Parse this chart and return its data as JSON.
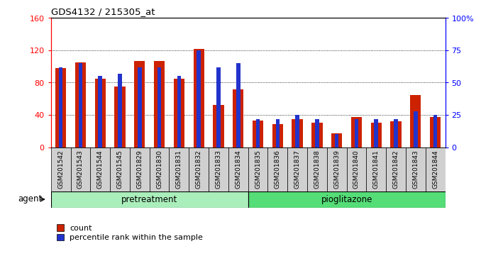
{
  "title": "GDS4132 / 215305_at",
  "samples": [
    "GSM201542",
    "GSM201543",
    "GSM201544",
    "GSM201545",
    "GSM201829",
    "GSM201830",
    "GSM201831",
    "GSM201832",
    "GSM201833",
    "GSM201834",
    "GSM201835",
    "GSM201836",
    "GSM201837",
    "GSM201838",
    "GSM201839",
    "GSM201840",
    "GSM201841",
    "GSM201842",
    "GSM201843",
    "GSM201844"
  ],
  "count": [
    98,
    105,
    85,
    75,
    107,
    107,
    85,
    122,
    52,
    72,
    33,
    29,
    35,
    30,
    17,
    37,
    30,
    32,
    65,
    37
  ],
  "percentile": [
    62,
    65,
    55,
    57,
    62,
    62,
    55,
    75,
    62,
    65,
    22,
    22,
    25,
    22,
    10,
    22,
    22,
    22,
    28,
    25
  ],
  "ylim_left": [
    0,
    160
  ],
  "ylim_right": [
    0,
    100
  ],
  "yticks_left": [
    0,
    40,
    80,
    120,
    160
  ],
  "yticks_right": [
    0,
    25,
    50,
    75,
    100
  ],
  "ytick_right_labels": [
    "0",
    "25",
    "50",
    "75",
    "100%"
  ],
  "bar_color_count": "#cc2200",
  "bar_color_percentile": "#2233cc",
  "bg_color_plot": "#ffffff",
  "bg_color_xtick": "#d0d0d0",
  "bg_color_pretreatment": "#aaeebb",
  "bg_color_pioglitazone": "#55dd77",
  "label_count": "count",
  "label_percentile": "percentile rank within the sample",
  "agent_label": "agent",
  "pretreatment_label": "pretreatment",
  "pioglitazone_label": "pioglitazone",
  "bar_width": 0.55,
  "blue_bar_width": 0.2
}
